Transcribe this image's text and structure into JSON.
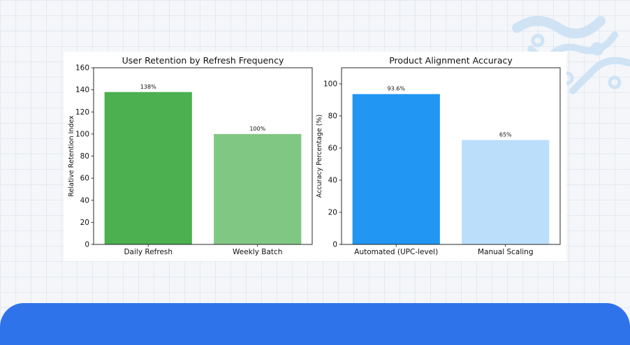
{
  "colors": {
    "background": "#f4f6f9",
    "panel_blue": "#2f73ea",
    "deco_blue": "#cfe3f5"
  },
  "chart_data": [
    {
      "type": "bar",
      "title": "User Retention by Refresh Frequency",
      "xlabel": "",
      "ylabel": "Relative Retention Index",
      "categories": [
        "Daily Refresh",
        "Weekly Batch"
      ],
      "values": [
        138,
        100
      ],
      "data_labels": [
        "138%",
        "100%"
      ],
      "colors": [
        "#4caf50",
        "#81c784"
      ],
      "ylim": [
        0,
        160
      ],
      "yticks": [
        0,
        20,
        40,
        60,
        80,
        100,
        120,
        140,
        160
      ],
      "grid": false,
      "legend": "none"
    },
    {
      "type": "bar",
      "title": "Product Alignment Accuracy",
      "xlabel": "",
      "ylabel": "Accuracy Percentage (%)",
      "categories": [
        "Automated (UPC-level)",
        "Manual Scaling"
      ],
      "values": [
        93.6,
        65
      ],
      "data_labels": [
        "93.6%",
        "65%"
      ],
      "colors": [
        "#2196f3",
        "#bbdefb"
      ],
      "ylim": [
        0,
        110
      ],
      "yticks": [
        0,
        20,
        40,
        60,
        80,
        100
      ],
      "grid": false,
      "legend": "none"
    }
  ]
}
